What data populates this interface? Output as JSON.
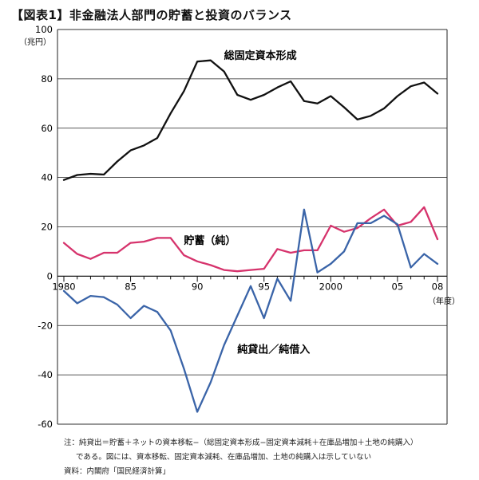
{
  "title": "【図表1】非金融法人部門の貯蓄と投資のバランス",
  "notes": {
    "note1": "注：純貸出＝貯蓄＋ネットの資本移転−（総固定資本形成−固定資本減耗＋在庫品増加＋土地の純購入）",
    "note2": "である。図には、資本移転、固定資本減耗、在庫品増加、土地の純購入は示していない",
    "source": "資料：内閣府「国民経済計算」"
  },
  "colors": {
    "gross_fixed_capital_formation": "#111111",
    "savings": "#d6336c",
    "net_lending": "#3a64a8"
  },
  "chart_data": {
    "type": "line",
    "title": "【図表1】非金融法人部門の貯蓄と投資のバランス",
    "ylabel": "（兆円）",
    "xlabel": "（年度）",
    "ylim": [
      -60,
      100
    ],
    "xlim": [
      1980,
      2008
    ],
    "grid": "horizontal",
    "yticks": [
      -60,
      -40,
      -20,
      0,
      20,
      40,
      60,
      80,
      100
    ],
    "xticks": [
      {
        "value": 1980,
        "label": "1980"
      },
      {
        "value": 1985,
        "label": "85"
      },
      {
        "value": 1990,
        "label": "90"
      },
      {
        "value": 1995,
        "label": "95"
      },
      {
        "value": 2000,
        "label": "2000"
      },
      {
        "value": 2005,
        "label": "05"
      },
      {
        "value": 2008,
        "label": "08"
      }
    ],
    "x": [
      1980,
      1981,
      1982,
      1983,
      1984,
      1985,
      1986,
      1987,
      1988,
      1989,
      1990,
      1991,
      1992,
      1993,
      1994,
      1995,
      1996,
      1997,
      1998,
      1999,
      2000,
      2001,
      2002,
      2003,
      2004,
      2005,
      2006,
      2007,
      2008
    ],
    "series": [
      {
        "key": "gross_fixed_capital_formation",
        "name": "総固定資本形成",
        "label_at": [
          1992,
          88
        ],
        "values": [
          39.0,
          41.0,
          41.5,
          41.2,
          46.5,
          51.0,
          53.0,
          56.0,
          66.0,
          75.0,
          87.0,
          87.5,
          83.0,
          73.5,
          71.5,
          73.5,
          76.5,
          79.0,
          71.0,
          70.0,
          73.0,
          68.5,
          63.5,
          65.0,
          68.0,
          73.0,
          77.0,
          78.5,
          74.0
        ]
      },
      {
        "key": "savings",
        "name": "貯蓄（純）",
        "label_at": [
          1989,
          13
        ],
        "values": [
          13.5,
          9.0,
          7.0,
          9.5,
          9.5,
          13.5,
          14.0,
          15.5,
          15.5,
          8.5,
          6.0,
          4.5,
          2.5,
          2.0,
          2.5,
          3.0,
          11.0,
          9.5,
          10.5,
          10.5,
          20.5,
          18.0,
          19.5,
          23.5,
          27.0,
          20.5,
          22.0,
          28.0,
          15.0
        ]
      },
      {
        "key": "net_lending",
        "name": "純貸出／純借入",
        "label_at": [
          1993,
          -31
        ],
        "values": [
          -6.0,
          -11.0,
          -8.0,
          -8.5,
          -11.5,
          -17.0,
          -12.0,
          -14.5,
          -22.0,
          -37.5,
          -55.0,
          -43.0,
          -28.0,
          -16.0,
          -4.0,
          -17.0,
          -1.0,
          -10.0,
          27.0,
          1.5,
          5.0,
          10.0,
          21.5,
          21.5,
          24.5,
          21.0,
          3.5,
          9.0,
          5.0
        ]
      }
    ]
  }
}
